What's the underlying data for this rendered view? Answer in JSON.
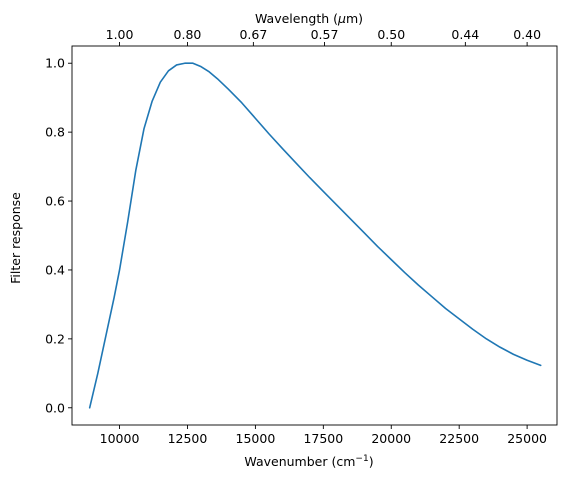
{
  "chart_data": {
    "type": "line",
    "xlabel": "Wavenumber (cm",
    "xlabel_exponent": "−1",
    "xlabel_suffix": ")",
    "ylabel": "Filter response",
    "top_xlabel_prefix": "Wavelength (",
    "top_xlabel_unit": "μ",
    "top_xlabel_suffix": "m)",
    "xlim": [
      8250,
      26100
    ],
    "ylim": [
      -0.05,
      1.05
    ],
    "x_ticks": [
      {
        "value": 10000,
        "label": "10000"
      },
      {
        "value": 12500,
        "label": "12500"
      },
      {
        "value": 15000,
        "label": "15000"
      },
      {
        "value": 17500,
        "label": "17500"
      },
      {
        "value": 20000,
        "label": "20000"
      },
      {
        "value": 22500,
        "label": "22500"
      },
      {
        "value": 25000,
        "label": "25000"
      }
    ],
    "y_ticks": [
      {
        "value": 0.0,
        "label": "0.0"
      },
      {
        "value": 0.2,
        "label": "0.2"
      },
      {
        "value": 0.4,
        "label": "0.4"
      },
      {
        "value": 0.6,
        "label": "0.6"
      },
      {
        "value": 0.8,
        "label": "0.8"
      },
      {
        "value": 1.0,
        "label": "1.0"
      }
    ],
    "top_x_ticks": [
      {
        "value": 10000,
        "label": "1.00"
      },
      {
        "value": 12500,
        "label": "0.80"
      },
      {
        "value": 14925,
        "label": "0.67"
      },
      {
        "value": 17544,
        "label": "0.57"
      },
      {
        "value": 20000,
        "label": "0.50"
      },
      {
        "value": 22727,
        "label": "0.44"
      },
      {
        "value": 25000,
        "label": "0.40"
      }
    ],
    "grid": false,
    "series": [
      {
        "color": "#1f77b4",
        "x": [
          8900,
          9200,
          9500,
          9800,
          10000,
          10300,
          10600,
          10900,
          11200,
          11500,
          11800,
          12100,
          12400,
          12700,
          13000,
          13300,
          13600,
          14000,
          14500,
          15000,
          15500,
          16000,
          16500,
          17000,
          17500,
          18000,
          18500,
          19000,
          19500,
          20000,
          20500,
          21000,
          21500,
          22000,
          22500,
          23000,
          23500,
          24000,
          24500,
          25000,
          25500
        ],
        "y": [
          0.0,
          0.1,
          0.21,
          0.32,
          0.4,
          0.54,
          0.69,
          0.81,
          0.89,
          0.945,
          0.978,
          0.995,
          1.0,
          1.0,
          0.99,
          0.975,
          0.955,
          0.925,
          0.885,
          0.84,
          0.795,
          0.752,
          0.71,
          0.668,
          0.628,
          0.588,
          0.548,
          0.508,
          0.468,
          0.43,
          0.392,
          0.356,
          0.322,
          0.288,
          0.258,
          0.228,
          0.2,
          0.176,
          0.155,
          0.138,
          0.123
        ]
      }
    ]
  }
}
